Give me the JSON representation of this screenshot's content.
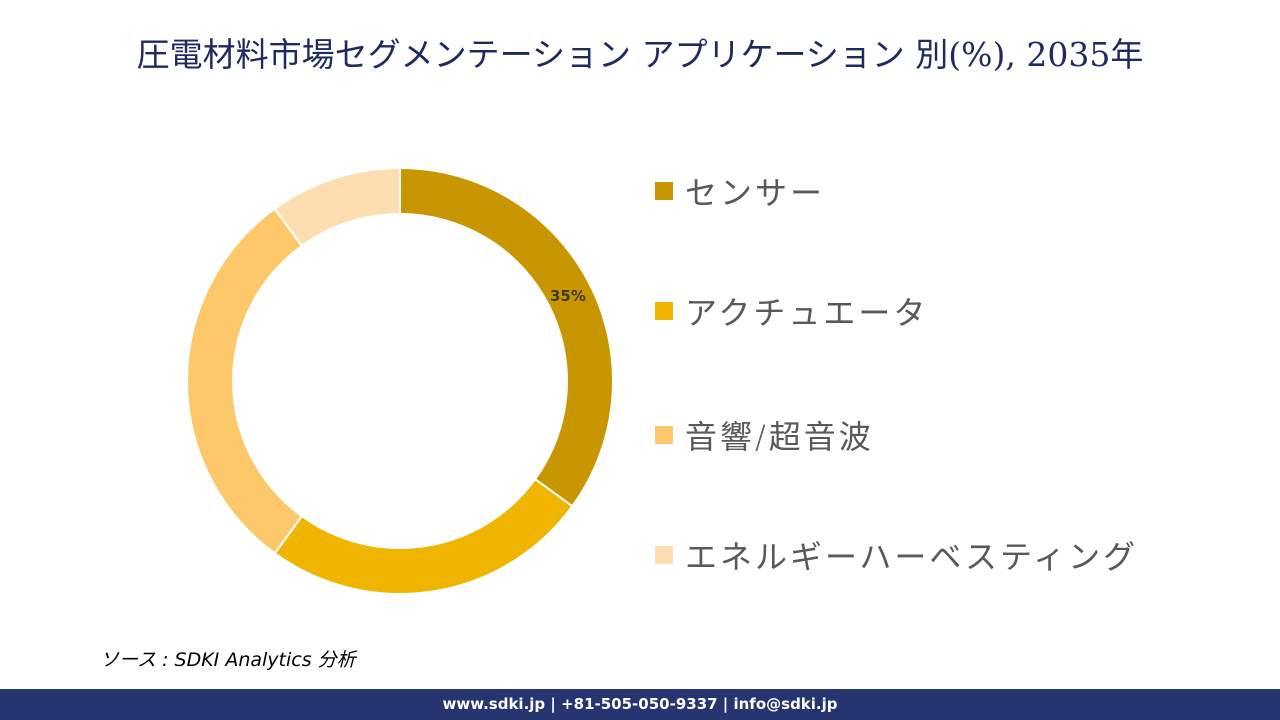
{
  "title": "圧電材料市場セグメンテーション アプリケーション 別(%), 2035年",
  "chart_data": {
    "type": "pie",
    "subtype": "donut",
    "title": "圧電材料市場セグメンテーション アプリケーション 別(%), 2035年",
    "categories": [
      "センサー",
      "アクチュエータ",
      "音響/超音波",
      "エネルギーハーベスティング"
    ],
    "values": [
      35,
      25,
      30,
      10
    ],
    "colors": [
      "#c89600",
      "#efb500",
      "#fcc86a",
      "#fedeb0"
    ],
    "data_labels": [
      "35%",
      "",
      "",
      ""
    ],
    "start_angle_deg": 0,
    "direction": "clockwise",
    "legend_position": "right"
  },
  "chart": {
    "label_sensor": "35%"
  },
  "legend": {
    "items": [
      {
        "label": "センサー",
        "color": "#c89600"
      },
      {
        "label": "アクチュエータ",
        "color": "#efb500"
      },
      {
        "label": "音響/超音波",
        "color": "#fcc86a"
      },
      {
        "label": "エネルギーハーベスティング",
        "color": "#fedeb0"
      }
    ]
  },
  "source": "ソース : SDKI Analytics  分析",
  "footer": {
    "text": "www.sdki.jp | +81-505-050-9337 | info@sdki.jp"
  }
}
